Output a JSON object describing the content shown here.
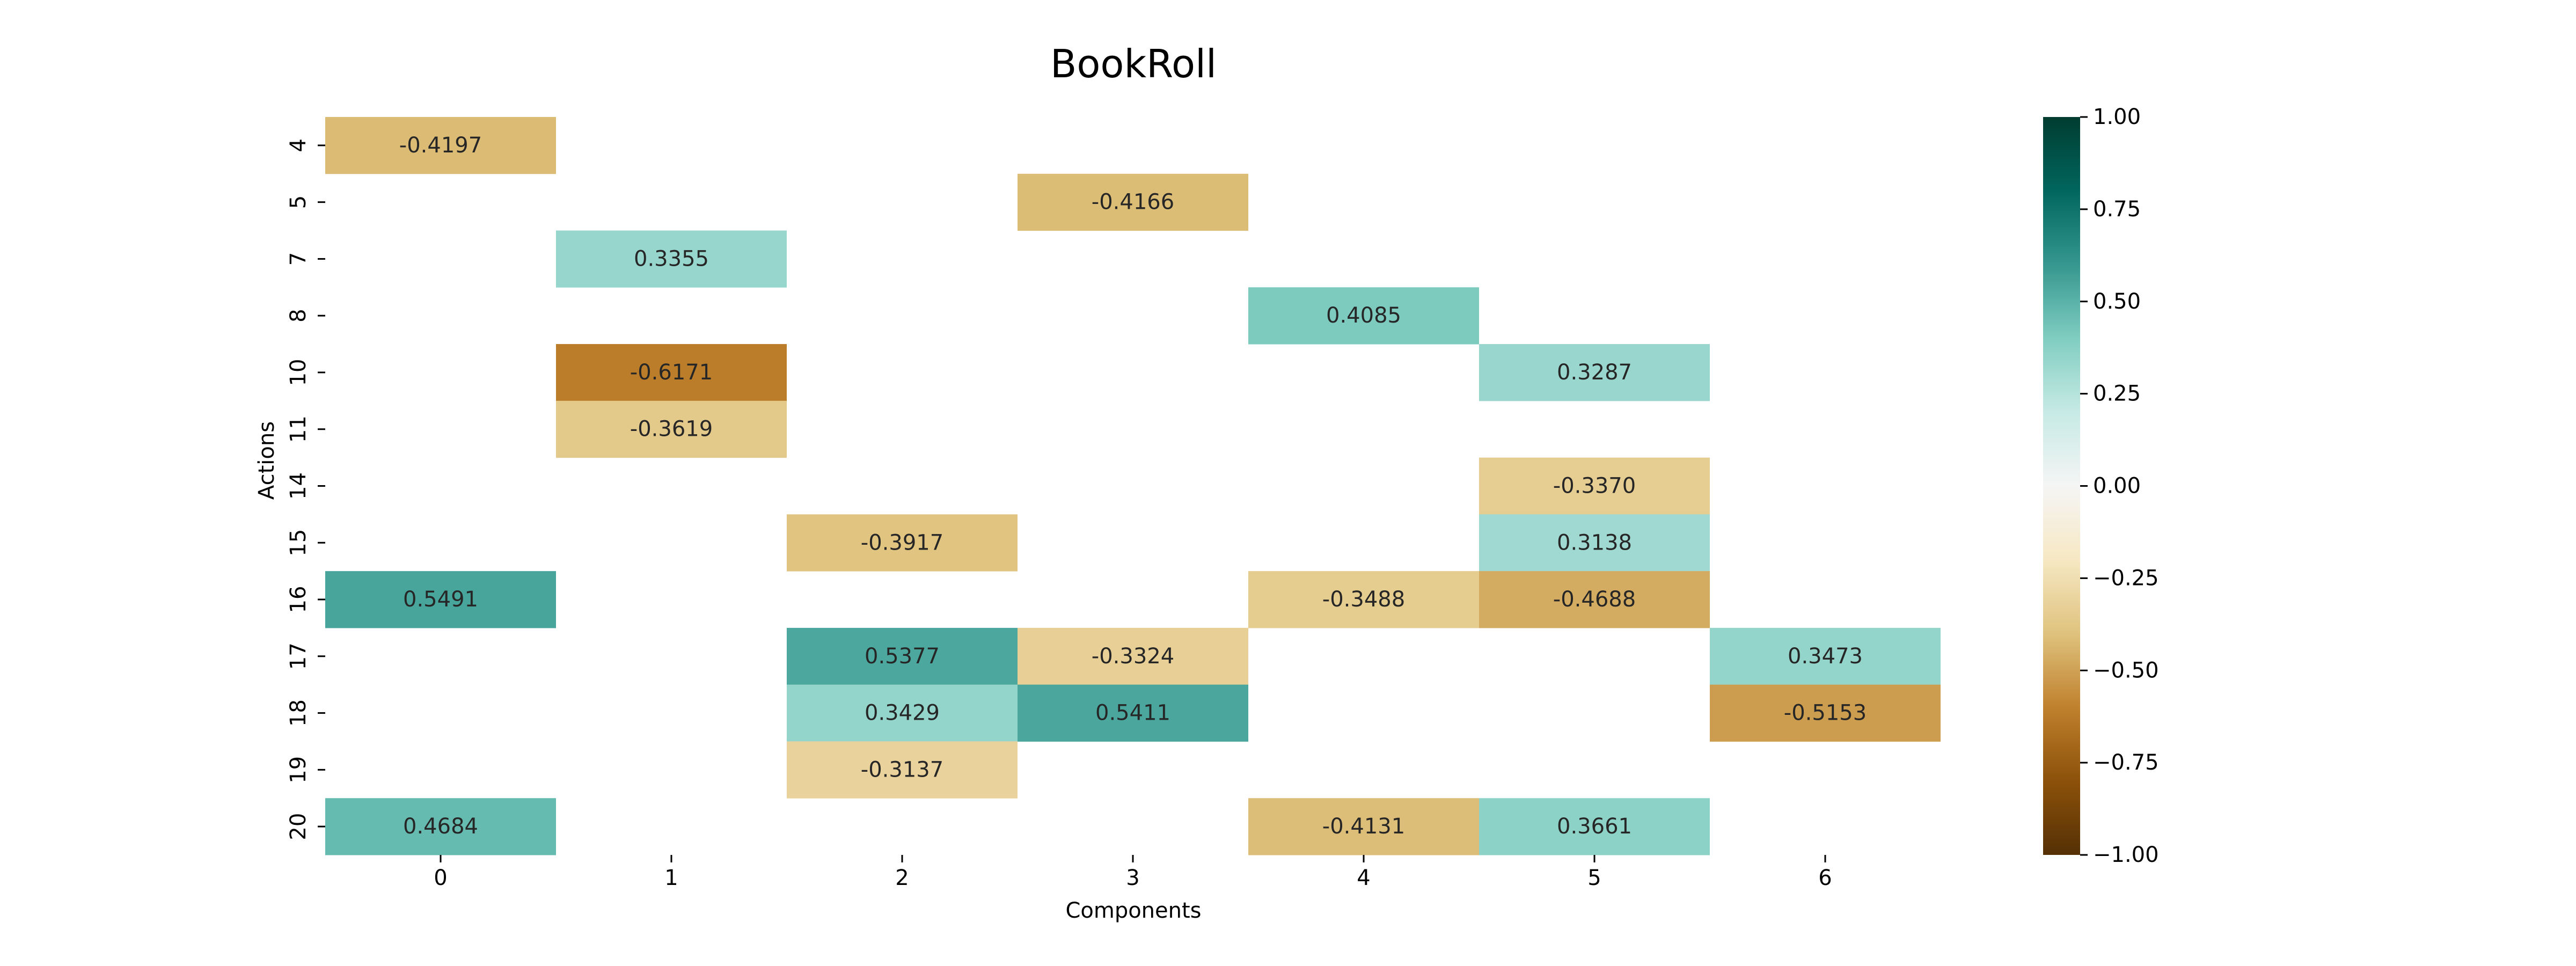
{
  "chart_data": {
    "type": "heatmap",
    "title": "BookRoll",
    "xlabel": "Components",
    "ylabel": "Actions",
    "x_categories": [
      "0",
      "1",
      "2",
      "3",
      "4",
      "5",
      "6"
    ],
    "y_categories": [
      "4",
      "5",
      "7",
      "8",
      "10",
      "11",
      "14",
      "15",
      "16",
      "17",
      "18",
      "19",
      "20"
    ],
    "cells": [
      {
        "x": "0",
        "y": "4",
        "value": -0.4197,
        "label": "-0.4197"
      },
      {
        "x": "3",
        "y": "5",
        "value": -0.4166,
        "label": "-0.4166"
      },
      {
        "x": "1",
        "y": "7",
        "value": 0.3355,
        "label": "0.3355"
      },
      {
        "x": "4",
        "y": "8",
        "value": 0.4085,
        "label": "0.4085"
      },
      {
        "x": "1",
        "y": "10",
        "value": -0.6171,
        "label": "-0.6171"
      },
      {
        "x": "5",
        "y": "10",
        "value": 0.3287,
        "label": "0.3287"
      },
      {
        "x": "1",
        "y": "11",
        "value": -0.3619,
        "label": "-0.3619"
      },
      {
        "x": "5",
        "y": "14",
        "value": -0.337,
        "label": "-0.3370"
      },
      {
        "x": "2",
        "y": "15",
        "value": -0.3917,
        "label": "-0.3917"
      },
      {
        "x": "5",
        "y": "15",
        "value": 0.3138,
        "label": "0.3138"
      },
      {
        "x": "0",
        "y": "16",
        "value": 0.5491,
        "label": "0.5491"
      },
      {
        "x": "4",
        "y": "16",
        "value": -0.3488,
        "label": "-0.3488"
      },
      {
        "x": "5",
        "y": "16",
        "value": -0.4688,
        "label": "-0.4688"
      },
      {
        "x": "2",
        "y": "17",
        "value": 0.5377,
        "label": "0.5377"
      },
      {
        "x": "3",
        "y": "17",
        "value": -0.3324,
        "label": "-0.3324"
      },
      {
        "x": "6",
        "y": "17",
        "value": 0.3473,
        "label": "0.3473"
      },
      {
        "x": "2",
        "y": "18",
        "value": 0.3429,
        "label": "0.3429"
      },
      {
        "x": "3",
        "y": "18",
        "value": 0.5411,
        "label": "0.5411"
      },
      {
        "x": "6",
        "y": "18",
        "value": -0.5153,
        "label": "-0.5153"
      },
      {
        "x": "2",
        "y": "19",
        "value": -0.3137,
        "label": "-0.3137"
      },
      {
        "x": "0",
        "y": "20",
        "value": 0.4684,
        "label": "0.4684"
      },
      {
        "x": "4",
        "y": "20",
        "value": -0.4131,
        "label": "-0.4131"
      },
      {
        "x": "5",
        "y": "20",
        "value": 0.3661,
        "label": "0.3661"
      }
    ],
    "colorbar": {
      "colormap": "BrBG",
      "range": [
        -1,
        1
      ],
      "ticks": [
        1.0,
        0.75,
        0.5,
        0.25,
        0.0,
        -0.25,
        -0.5,
        -0.75,
        -1.0
      ],
      "tick_labels": [
        "1.00",
        "0.75",
        "0.50",
        "0.25",
        "0.00",
        "−0.25",
        "−0.50",
        "−0.75",
        "−1.00"
      ],
      "stops": [
        "#543005",
        "#8c510a",
        "#bf812d",
        "#dfc27d",
        "#f6e8c3",
        "#f5f5f5",
        "#c7eae5",
        "#80cdc1",
        "#35978f",
        "#01665e",
        "#003c30"
      ]
    },
    "grid": false,
    "legend": "none",
    "colors": {
      "light_text": "#262626",
      "dark_text": "#ffffff",
      "axis": "#000000"
    }
  }
}
